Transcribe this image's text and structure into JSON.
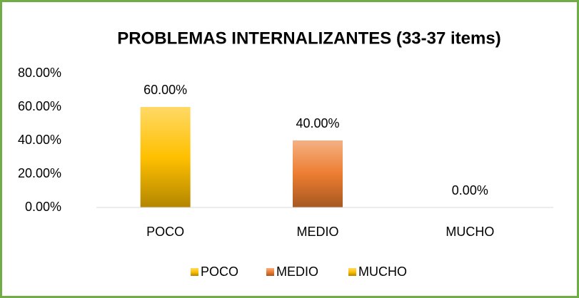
{
  "chart_data": {
    "type": "bar",
    "title": "PROBLEMAS INTERNALIZANTES (33-37 items)",
    "categories": [
      "POCO",
      "MEDIO",
      "MUCHO"
    ],
    "values": [
      60,
      40,
      0
    ],
    "value_labels": [
      "60.00%",
      "40.00%",
      "0.00%"
    ],
    "colors": [
      "#ffc000",
      "#ed7d31",
      "#ffc000"
    ],
    "ylim": [
      0,
      80
    ],
    "yticks": [
      {
        "value": 0,
        "label": "0.00%"
      },
      {
        "value": 20,
        "label": "20.00%"
      },
      {
        "value": 40,
        "label": "40.00%"
      },
      {
        "value": 60,
        "label": "60.00%"
      },
      {
        "value": 80,
        "label": "80.00%"
      }
    ],
    "grid": false,
    "legend": "bottom"
  }
}
